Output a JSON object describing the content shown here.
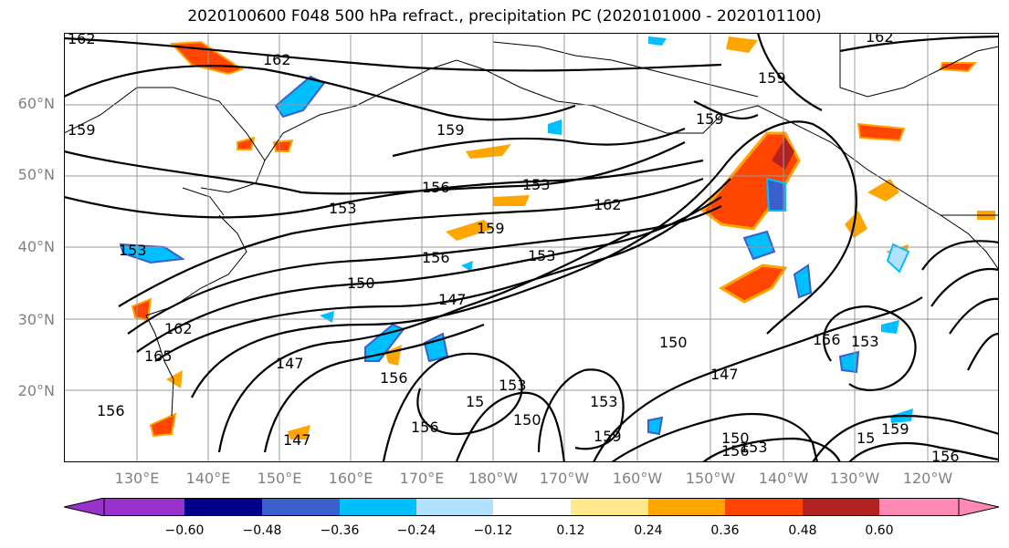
{
  "title": "2020100600 F048 500 hPa refract., precipitation PC (2020101000 - 2020101100)",
  "lat_labels": [
    "60°N",
    "50°N",
    "40°N",
    "30°N",
    "20°N"
  ],
  "lon_labels": [
    "130°E",
    "140°E",
    "150°E",
    "160°E",
    "170°E",
    "180°W",
    "170°W",
    "160°W",
    "150°W",
    "140°W",
    "130°W",
    "120°W"
  ],
  "contour_labels": [
    "162",
    "162",
    "162",
    "159",
    "159",
    "159",
    "159",
    "159",
    "156",
    "156",
    "156",
    "156",
    "156",
    "156",
    "156",
    "153",
    "153",
    "153",
    "153",
    "153",
    "153",
    "153",
    "153",
    "150",
    "150",
    "150",
    "147",
    "147",
    "147",
    "147",
    "165",
    "162",
    "162",
    "159",
    "159",
    "156",
    "15",
    "150",
    "15"
  ],
  "colorbar": {
    "ticks": [
      "−0.60",
      "−0.48",
      "−0.36",
      "−0.24",
      "−0.12",
      "0.12",
      "0.24",
      "0.36",
      "0.48",
      "0.60"
    ],
    "colors": [
      "#9932cc",
      "#00008b",
      "#3a5fcd",
      "#00bfff",
      "#b0e2ff",
      "#ffffff",
      "#ffe98a",
      "#ffa500",
      "#ff4500",
      "#b22222",
      "#ff89b4",
      "#ff89b4"
    ]
  }
}
